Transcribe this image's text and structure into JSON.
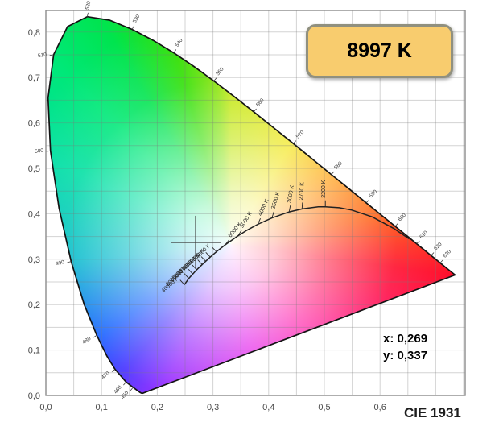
{
  "title_box": {
    "label": "8997 K"
  },
  "readout": {
    "x_label": "x: 0,269",
    "y_label": "y: 0,337"
  },
  "footer": {
    "diagram_name": "CIE 1931"
  },
  "colors": {
    "badge_fill": "#f8cc6e",
    "badge_border": "#90907f",
    "grid": "#8c8c8c",
    "locus_outline": "#141414",
    "planckian_stroke": "#222222"
  },
  "chart_data": {
    "type": "scatter",
    "subtype": "cie-1931-chromaticity-diagram",
    "title": "CIE 1931",
    "xlabel": "",
    "ylabel": "",
    "xlim": [
      0,
      0.753
    ],
    "ylim": [
      0,
      0.847
    ],
    "grid_step": 0.05,
    "point": {
      "x": 0.269,
      "y": 0.337,
      "cct_kelvin": 8997,
      "cct_label": "8997 K"
    },
    "x_ticks": [
      {
        "label": "0,0",
        "v": 0.0
      },
      {
        "label": "0,1",
        "v": 0.1
      },
      {
        "label": "0,2",
        "v": 0.2
      },
      {
        "label": "0,3",
        "v": 0.3
      },
      {
        "label": "0,4",
        "v": 0.4
      },
      {
        "label": "0,5",
        "v": 0.5
      },
      {
        "label": "0,6",
        "v": 0.6
      }
    ],
    "y_ticks": [
      {
        "label": "0,0",
        "v": 0.0
      },
      {
        "label": "0,1",
        "v": 0.1
      },
      {
        "label": "0,2",
        "v": 0.2
      },
      {
        "label": "0,3",
        "v": 0.3
      },
      {
        "label": "0,4",
        "v": 0.4
      },
      {
        "label": "0,5",
        "v": 0.5
      },
      {
        "label": "0,6",
        "v": 0.6
      },
      {
        "label": "0,7",
        "v": 0.7
      },
      {
        "label": "0,8",
        "v": 0.8
      }
    ],
    "spectral_locus": [
      [
        380,
        0.1741,
        0.005
      ],
      [
        400,
        0.1733,
        0.0048
      ],
      [
        420,
        0.1714,
        0.0051
      ],
      [
        430,
        0.1689,
        0.0069
      ],
      [
        440,
        0.1644,
        0.0109
      ],
      [
        450,
        0.1566,
        0.0177
      ],
      [
        460,
        0.144,
        0.0297
      ],
      [
        470,
        0.1241,
        0.0578
      ],
      [
        475,
        0.1096,
        0.0868
      ],
      [
        480,
        0.0913,
        0.1327
      ],
      [
        485,
        0.0687,
        0.2007
      ],
      [
        490,
        0.0454,
        0.295
      ],
      [
        495,
        0.0235,
        0.4127
      ],
      [
        500,
        0.0082,
        0.5384
      ],
      [
        505,
        0.0039,
        0.6548
      ],
      [
        510,
        0.0139,
        0.7502
      ],
      [
        515,
        0.0389,
        0.812
      ],
      [
        520,
        0.0743,
        0.8338
      ],
      [
        525,
        0.1142,
        0.8262
      ],
      [
        530,
        0.1547,
        0.8059
      ],
      [
        535,
        0.1929,
        0.7816
      ],
      [
        540,
        0.2296,
        0.7543
      ],
      [
        545,
        0.2658,
        0.7243
      ],
      [
        550,
        0.3016,
        0.6923
      ],
      [
        555,
        0.3373,
        0.6589
      ],
      [
        560,
        0.3731,
        0.6245
      ],
      [
        565,
        0.4087,
        0.5896
      ],
      [
        570,
        0.4441,
        0.5547
      ],
      [
        575,
        0.4788,
        0.5202
      ],
      [
        580,
        0.5125,
        0.4866
      ],
      [
        585,
        0.5448,
        0.4544
      ],
      [
        590,
        0.5752,
        0.4242
      ],
      [
        595,
        0.6029,
        0.3965
      ],
      [
        600,
        0.627,
        0.3725
      ],
      [
        605,
        0.6482,
        0.3514
      ],
      [
        610,
        0.6658,
        0.334
      ],
      [
        615,
        0.6801,
        0.3197
      ],
      [
        620,
        0.6915,
        0.3083
      ],
      [
        630,
        0.7079,
        0.292
      ],
      [
        640,
        0.719,
        0.2809
      ],
      [
        650,
        0.726,
        0.274
      ],
      [
        700,
        0.7347,
        0.2653
      ]
    ],
    "wavelength_labels": [
      {
        "label": "450",
        "x": 0.1566,
        "y": 0.0177,
        "rot": -50,
        "anchor": "end"
      },
      {
        "label": "460",
        "x": 0.144,
        "y": 0.0297,
        "rot": -50,
        "anchor": "end"
      },
      {
        "label": "470",
        "x": 0.1241,
        "y": 0.0578,
        "rot": -40,
        "anchor": "end"
      },
      {
        "label": "480",
        "x": 0.0913,
        "y": 0.1327,
        "rot": -35,
        "anchor": "end"
      },
      {
        "label": "490",
        "x": 0.0454,
        "y": 0.295,
        "rot": -15,
        "anchor": "end"
      },
      {
        "label": "500",
        "x": 0.0082,
        "y": 0.5384,
        "rot": -8,
        "anchor": "end"
      },
      {
        "label": "510",
        "x": 0.0139,
        "y": 0.7502,
        "rot": -10,
        "anchor": "end"
      },
      {
        "label": "520",
        "x": 0.0743,
        "y": 0.8338,
        "rot": -78,
        "anchor": "start"
      },
      {
        "label": "530",
        "x": 0.1547,
        "y": 0.8059,
        "rot": -60,
        "anchor": "start"
      },
      {
        "label": "540",
        "x": 0.2296,
        "y": 0.7543,
        "rot": -55,
        "anchor": "start"
      },
      {
        "label": "550",
        "x": 0.3016,
        "y": 0.6923,
        "rot": -50,
        "anchor": "start"
      },
      {
        "label": "560",
        "x": 0.3731,
        "y": 0.6245,
        "rot": -48,
        "anchor": "start"
      },
      {
        "label": "570",
        "x": 0.4441,
        "y": 0.5547,
        "rot": -45,
        "anchor": "start"
      },
      {
        "label": "580",
        "x": 0.5125,
        "y": 0.4866,
        "rot": -45,
        "anchor": "start"
      },
      {
        "label": "590",
        "x": 0.5752,
        "y": 0.4242,
        "rot": -45,
        "anchor": "start"
      },
      {
        "label": "600",
        "x": 0.627,
        "y": 0.3725,
        "rot": -45,
        "anchor": "start"
      },
      {
        "label": "610",
        "x": 0.6658,
        "y": 0.334,
        "rot": -45,
        "anchor": "start"
      },
      {
        "label": "620",
        "x": 0.6915,
        "y": 0.3083,
        "rot": -45,
        "anchor": "start"
      },
      {
        "label": "630",
        "x": 0.7079,
        "y": 0.292,
        "rot": -45,
        "anchor": "start"
      }
    ],
    "planckian_locus": [
      [
        0.2487,
        0.2438
      ],
      [
        0.2565,
        0.2577
      ],
      [
        0.2637,
        0.2674
      ],
      [
        0.2708,
        0.2767
      ],
      [
        0.2806,
        0.2883
      ],
      [
        0.287,
        0.2956
      ],
      [
        0.2952,
        0.3048
      ],
      [
        0.3064,
        0.3166
      ],
      [
        0.3221,
        0.3318
      ],
      [
        0.3451,
        0.3516
      ],
      [
        0.3611,
        0.3638
      ],
      [
        0.3805,
        0.3768
      ],
      [
        0.4059,
        0.3907
      ],
      [
        0.4369,
        0.4041
      ],
      [
        0.4599,
        0.4106
      ],
      [
        0.4891,
        0.4155
      ],
      [
        0.5018,
        0.4153
      ],
      [
        0.5267,
        0.4133
      ],
      [
        0.5493,
        0.4082
      ],
      [
        0.5857,
        0.3932
      ],
      [
        0.6249,
        0.3676
      ],
      [
        0.6528,
        0.3444
      ]
    ],
    "planckian_labels": [
      {
        "label": "40000 K",
        "x": 0.2487,
        "y": 0.2438,
        "rot": -42,
        "anchor": "end"
      },
      {
        "label": "20000 K",
        "x": 0.2565,
        "y": 0.2577,
        "rot": -42,
        "anchor": "end"
      },
      {
        "label": "15000 K",
        "x": 0.2637,
        "y": 0.2674,
        "rot": -42,
        "anchor": "end"
      },
      {
        "label": "12000 K",
        "x": 0.2708,
        "y": 0.2767,
        "rot": -43,
        "anchor": "end"
      },
      {
        "label": "10000 K",
        "x": 0.2806,
        "y": 0.2883,
        "rot": -43,
        "anchor": "end"
      },
      {
        "label": "9000 K",
        "x": 0.287,
        "y": 0.2956,
        "rot": -44,
        "anchor": "end"
      },
      {
        "label": "8000 K",
        "x": 0.2952,
        "y": 0.3048,
        "rot": -44,
        "anchor": "end"
      },
      {
        "label": "7000 K",
        "x": 0.3064,
        "y": 0.3166,
        "rot": -45,
        "anchor": "end"
      },
      {
        "label": "6000 K",
        "x": 0.3221,
        "y": 0.3318,
        "rot": -52,
        "anchor": "start"
      },
      {
        "label": "5000 K",
        "x": 0.3451,
        "y": 0.3516,
        "rot": -58,
        "anchor": "start"
      },
      {
        "label": "4000 K",
        "x": 0.3805,
        "y": 0.3768,
        "rot": -66,
        "anchor": "start"
      },
      {
        "label": "3500 K",
        "x": 0.4059,
        "y": 0.3907,
        "rot": -73,
        "anchor": "start"
      },
      {
        "label": "3000 K",
        "x": 0.4369,
        "y": 0.4041,
        "rot": -80,
        "anchor": "start"
      },
      {
        "label": "2700 K",
        "x": 0.4599,
        "y": 0.4106,
        "rot": -86,
        "anchor": "start"
      },
      {
        "label": "2200 K",
        "x": 0.5018,
        "y": 0.4153,
        "rot": -90,
        "anchor": "start"
      }
    ]
  }
}
